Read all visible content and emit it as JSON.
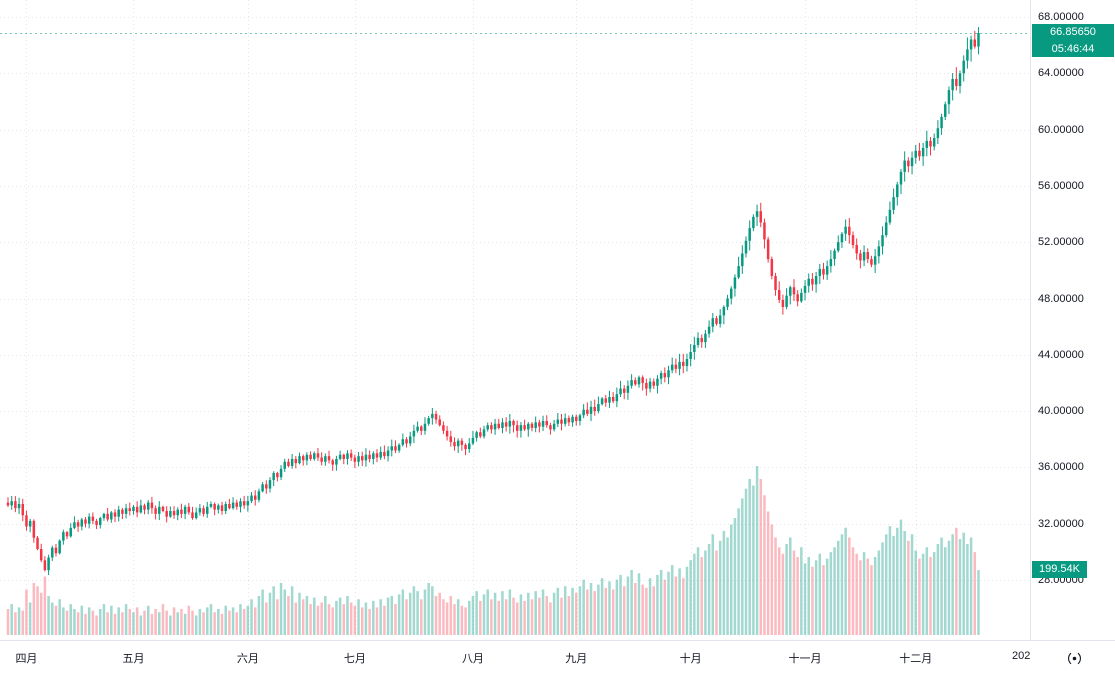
{
  "chart": {
    "up_color": "#089981",
    "down_color": "#f23645",
    "vol_up_color": "rgba(8,153,129,0.38)",
    "vol_down_color": "rgba(242,54,69,0.34)",
    "grid_color": "rgba(19,23,34,0.10)",
    "axis_line_color": "#e0e3eb",
    "badge_color": "#089981"
  },
  "price_axis": {
    "ticks": [
      "68.00000",
      "64.00000",
      "60.00000",
      "56.00000",
      "52.00000",
      "48.00000",
      "44.00000",
      "40.00000",
      "36.00000",
      "32.00000",
      "28.00000"
    ],
    "last_price_label": "66.85650",
    "countdown_label": "05:46:44",
    "volume_label": "199.54K"
  },
  "time_axis": {
    "partial_year_label": "202"
  },
  "chart_data": {
    "type": "candlestick+volume",
    "title": "",
    "xlabel": "",
    "ylabel": "",
    "y_ticks": [
      68,
      64,
      60,
      56,
      52,
      48,
      44,
      40,
      36,
      32,
      28
    ],
    "ylim": [
      23.7,
      68.6
    ],
    "last_price": 66.8565,
    "last_volume_k": 199.54,
    "grid": "dotted",
    "segments": [
      {
        "label": "",
        "closes": [
          33.3,
          33.6,
          33.1,
          33.4,
          32.6
        ],
        "volumes_k": [
          80,
          95,
          70,
          85,
          75
        ]
      },
      {
        "label": "四月",
        "closes": [
          31.8,
          32.2,
          31.0,
          30.2,
          29.4,
          28.7,
          29.6,
          30.3,
          29.9,
          30.8,
          31.4,
          31.1,
          31.7,
          32.1,
          31.8,
          32.3,
          32.0,
          32.5,
          32.2,
          31.9,
          32.4,
          32.7,
          32.3,
          32.8,
          32.5,
          33.0,
          32.7,
          33.1,
          32.9
        ],
        "volumes_k": [
          140,
          100,
          160,
          150,
          130,
          180,
          120,
          100,
          90,
          110,
          85,
          75,
          95,
          80,
          70,
          90,
          65,
          85,
          75,
          60,
          80,
          95,
          70,
          90,
          65,
          85,
          70,
          95,
          80
        ]
      },
      {
        "label": "五月",
        "closes": [
          33.2,
          32.8,
          33.3,
          33.0,
          33.5,
          33.1,
          32.7,
          33.2,
          32.9,
          32.5,
          32.9,
          32.6,
          33.0,
          32.7,
          33.2,
          32.8,
          32.4,
          32.8,
          33.1,
          32.7,
          33.2,
          33.4,
          33.0,
          33.3,
          32.9,
          33.4,
          33.1,
          33.5,
          33.2,
          33.6,
          33.3
        ],
        "volumes_k": [
          70,
          85,
          60,
          75,
          90,
          65,
          80,
          70,
          95,
          75,
          60,
          85,
          70,
          80,
          65,
          90,
          75,
          60,
          80,
          70,
          85,
          95,
          70,
          80,
          65,
          90,
          75,
          85,
          70,
          95,
          80
        ]
      },
      {
        "label": "六月",
        "closes": [
          33.6,
          34.0,
          33.7,
          34.3,
          34.8,
          34.5,
          35.1,
          35.6,
          35.3,
          35.9,
          36.4,
          36.1,
          36.6,
          36.3,
          36.8,
          36.5,
          36.9,
          36.6,
          37.0,
          36.7,
          36.4,
          36.8,
          36.5,
          36.2,
          36.6,
          36.9,
          36.6,
          37.0,
          36.7
        ],
        "volumes_k": [
          90,
          110,
          85,
          120,
          140,
          100,
          130,
          150,
          110,
          160,
          140,
          120,
          150,
          100,
          130,
          110,
          120,
          95,
          115,
          90,
          100,
          120,
          95,
          85,
          105,
          115,
          95,
          120,
          100
        ]
      },
      {
        "label": "七月",
        "closes": [
          36.4,
          36.8,
          36.5,
          36.9,
          36.6,
          37.0,
          36.7,
          37.1,
          36.8,
          37.2,
          37.5,
          37.2,
          37.6,
          38.0,
          37.7,
          38.2,
          38.6,
          38.9,
          38.6,
          39.1,
          39.5,
          39.8,
          39.4,
          39.0,
          38.6,
          38.2,
          37.8,
          37.5,
          37.9,
          37.6,
          37.3,
          37.7
        ],
        "volumes_k": [
          90,
          110,
          85,
          100,
          80,
          105,
          85,
          110,
          90,
          115,
          120,
          95,
          125,
          140,
          110,
          130,
          150,
          135,
          110,
          140,
          160,
          150,
          120,
          130,
          110,
          100,
          120,
          95,
          110,
          90,
          85,
          105
        ]
      },
      {
        "label": "八月",
        "closes": [
          38.1,
          38.5,
          38.2,
          38.7,
          39.0,
          38.7,
          39.1,
          38.8,
          39.2,
          38.9,
          39.3,
          39.0,
          38.6,
          39.0,
          38.7,
          39.1,
          38.8,
          39.2,
          38.9,
          39.3,
          39.0,
          38.7,
          39.1,
          39.4,
          39.1,
          39.5,
          39.2,
          39.6
        ],
        "volumes_k": [
          120,
          135,
          105,
          125,
          140,
          110,
          130,
          105,
          135,
          110,
          140,
          115,
          100,
          125,
          105,
          130,
          110,
          135,
          115,
          140,
          120,
          100,
          130,
          145,
          115,
          150,
          120,
          145
        ]
      },
      {
        "label": "九月",
        "closes": [
          39.3,
          39.7,
          40.1,
          39.8,
          40.3,
          40.0,
          40.5,
          40.9,
          40.6,
          41.0,
          40.7,
          41.2,
          41.6,
          41.3,
          41.8,
          42.2,
          41.9,
          42.4,
          42.0,
          41.6,
          42.1,
          41.8,
          42.3,
          42.7,
          42.4,
          42.9,
          43.3,
          43.0,
          43.5,
          43.2,
          43.7
        ],
        "volumes_k": [
          130,
          150,
          170,
          140,
          160,
          135,
          155,
          175,
          145,
          165,
          140,
          170,
          185,
          150,
          180,
          200,
          160,
          190,
          155,
          145,
          175,
          150,
          185,
          200,
          170,
          195,
          215,
          180,
          205,
          175,
          210
        ]
      },
      {
        "label": "十月",
        "closes": [
          44.2,
          44.7,
          45.2,
          44.9,
          45.5,
          46.0,
          46.6,
          46.2,
          46.8,
          47.4,
          48.0,
          48.7,
          49.5,
          50.3,
          51.2,
          52.1,
          53.0,
          53.8,
          54.2,
          53.4,
          52.2,
          50.8,
          49.6,
          48.6,
          47.9,
          47.4,
          48.2,
          48.8,
          48.3,
          47.8,
          48.4
        ],
        "volumes_k": [
          230,
          250,
          270,
          240,
          260,
          280,
          310,
          260,
          290,
          320,
          300,
          340,
          360,
          390,
          420,
          450,
          480,
          460,
          520,
          480,
          430,
          380,
          340,
          300,
          270,
          250,
          280,
          300,
          260,
          240,
          270
        ]
      },
      {
        "label": "十一月",
        "closes": [
          48.9,
          49.4,
          49.0,
          49.6,
          50.1,
          49.7,
          50.3,
          50.8,
          51.4,
          52.0,
          52.6,
          53.1,
          52.5,
          51.8,
          51.2,
          50.7,
          51.3,
          50.8,
          50.4,
          51.0,
          51.7,
          52.5,
          53.4,
          54.3,
          55.2,
          56.1,
          57.0,
          57.8,
          57.4,
          58.0
        ],
        "volumes_k": [
          220,
          240,
          210,
          230,
          250,
          215,
          235,
          255,
          270,
          290,
          310,
          330,
          300,
          270,
          250,
          230,
          255,
          235,
          215,
          240,
          260,
          285,
          310,
          335,
          305,
          330,
          355,
          320,
          290,
          310
        ]
      },
      {
        "label": "十二月",
        "closes": [
          58.5,
          58.1,
          58.7,
          59.2,
          58.8,
          59.4,
          60.1,
          60.9,
          61.8,
          62.8,
          63.6,
          63.1,
          64.0,
          64.9,
          65.7,
          66.4,
          65.9,
          66.86
        ],
        "volumes_k": [
          260,
          235,
          250,
          270,
          240,
          255,
          280,
          300,
          270,
          290,
          310,
          330,
          295,
          315,
          280,
          300,
          255,
          199.54
        ]
      }
    ]
  }
}
